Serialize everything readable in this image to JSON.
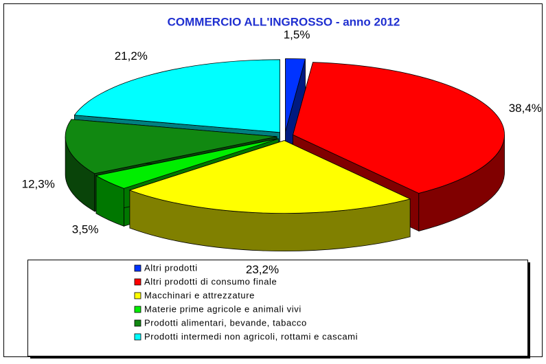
{
  "chart_data": {
    "type": "pie",
    "title": "COMMERCIO ALL'INGROSSO - anno 2012",
    "categories": [
      "Altri prodotti",
      "Altri prodotti di consumo finale",
      "Macchinari e attrezzature",
      "Materie prime agricole e animali vivi",
      "Prodotti alimentari, bevande, tabacco",
      "Prodotti intermedi non agricoli, rottami e cascami"
    ],
    "values": [
      1.5,
      38.4,
      23.2,
      3.5,
      12.3,
      21.2
    ],
    "value_labels": [
      "1,5%",
      "38,4%",
      "23,2%",
      "3,5%",
      "12,3%",
      "21,2%"
    ],
    "colors": [
      "#0033ff",
      "#ff0000",
      "#ffff00",
      "#00ee00",
      "#118811",
      "#00ffff"
    ]
  }
}
